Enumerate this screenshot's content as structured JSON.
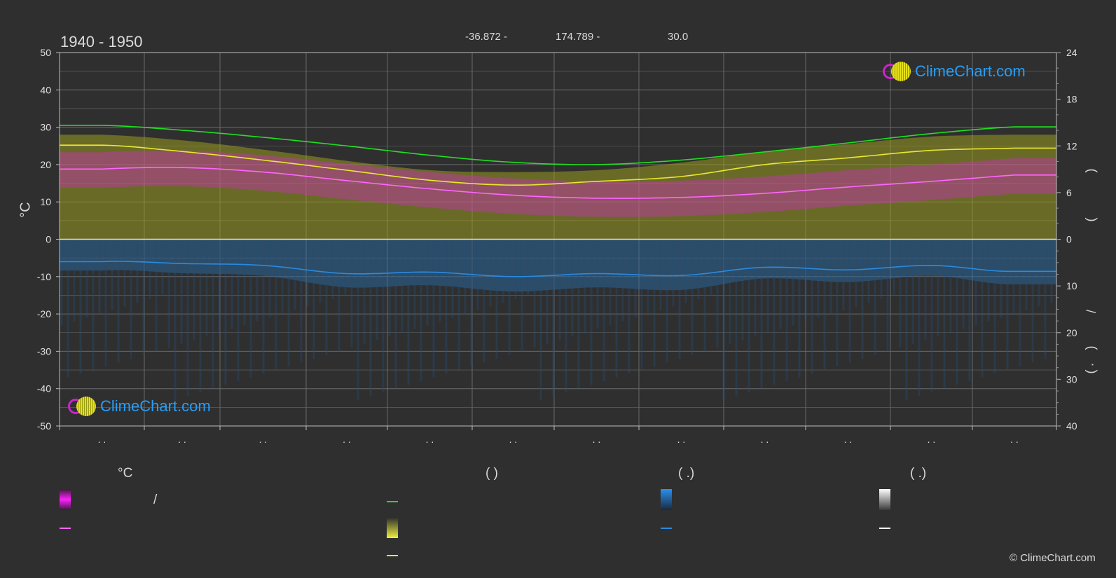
{
  "header": {
    "period": "1940 - 1950",
    "lat": "-36.872 -",
    "lon": "174.789 -",
    "elev": "30.0"
  },
  "axes": {
    "left_unit": "°C",
    "right_upper_glyph": ")",
    "right_mid_glyph": "(",
    "right_slash": "/",
    "right_lower_glyph1": ")",
    "right_lower_glyph2": "·",
    "right_lower_glyph3": "("
  },
  "month_labels": [
    ". .",
    ". .",
    ". .",
    ". .",
    ". .",
    ". .",
    ". .",
    ". .",
    ". .",
    ". .",
    ". .",
    ". ."
  ],
  "legend": {
    "col1_title": "°C",
    "col1_range_sep": "/",
    "col2_title": "(          )",
    "col3_title": "(   .)",
    "col4_title": "(   .)"
  },
  "logo_text": "ClimeChart.com",
  "copyright": "© ClimeChart.com",
  "colors": {
    "background": "#2f2f2f",
    "daylight": "#20e020",
    "sunshine": "#e8e830",
    "sunshine_band": "#9a9a20",
    "temp_mean": "#ff66ff",
    "temp_band": "#e020e0",
    "precip": "#2a8ae0",
    "precip_band": "#2a6aa0",
    "snow": "#ffffff",
    "grid": "#6a6a6a"
  },
  "chart_data": {
    "type": "line",
    "x_months": [
      1,
      2,
      3,
      4,
      5,
      6,
      7,
      8,
      9,
      10,
      11,
      12
    ],
    "y_left_range": [
      -50,
      50
    ],
    "y_left_ticks": [
      50,
      40,
      30,
      20,
      10,
      0,
      -10,
      -20,
      -30,
      -40,
      -50
    ],
    "y_right_upper_ticks": [
      24,
      18,
      12,
      6,
      0
    ],
    "y_right_lower_ticks": [
      10,
      20,
      30,
      40
    ],
    "grid": true,
    "series": [
      {
        "key": "daylight",
        "values_left_scale": [
          30.5,
          29.2,
          27.3,
          25.0,
          22.5,
          20.6,
          20.0,
          21.2,
          23.4,
          25.8,
          28.3,
          30.1
        ]
      },
      {
        "key": "sunshine",
        "values_left_scale": [
          25.2,
          23.5,
          21.2,
          18.5,
          15.8,
          14.5,
          15.5,
          16.8,
          20.0,
          21.8,
          23.8,
          24.4
        ]
      },
      {
        "key": "sunshine_band_top",
        "values_left_scale": [
          28.0,
          26.5,
          24.0,
          21.0,
          18.5,
          18.0,
          18.5,
          20.5,
          23.5,
          25.5,
          27.5,
          28.0
        ]
      },
      {
        "key": "temp_mean",
        "values_left_scale": [
          18.8,
          19.2,
          18.0,
          15.7,
          13.5,
          11.8,
          11.0,
          11.2,
          12.3,
          14.0,
          15.5,
          17.2
        ]
      },
      {
        "key": "precip_mean",
        "values_left_scale": [
          -6.0,
          -6.5,
          -7.0,
          -9.2,
          -8.8,
          -10.0,
          -9.2,
          -9.7,
          -7.5,
          -8.2,
          -7.0,
          -8.6
        ]
      }
    ]
  }
}
